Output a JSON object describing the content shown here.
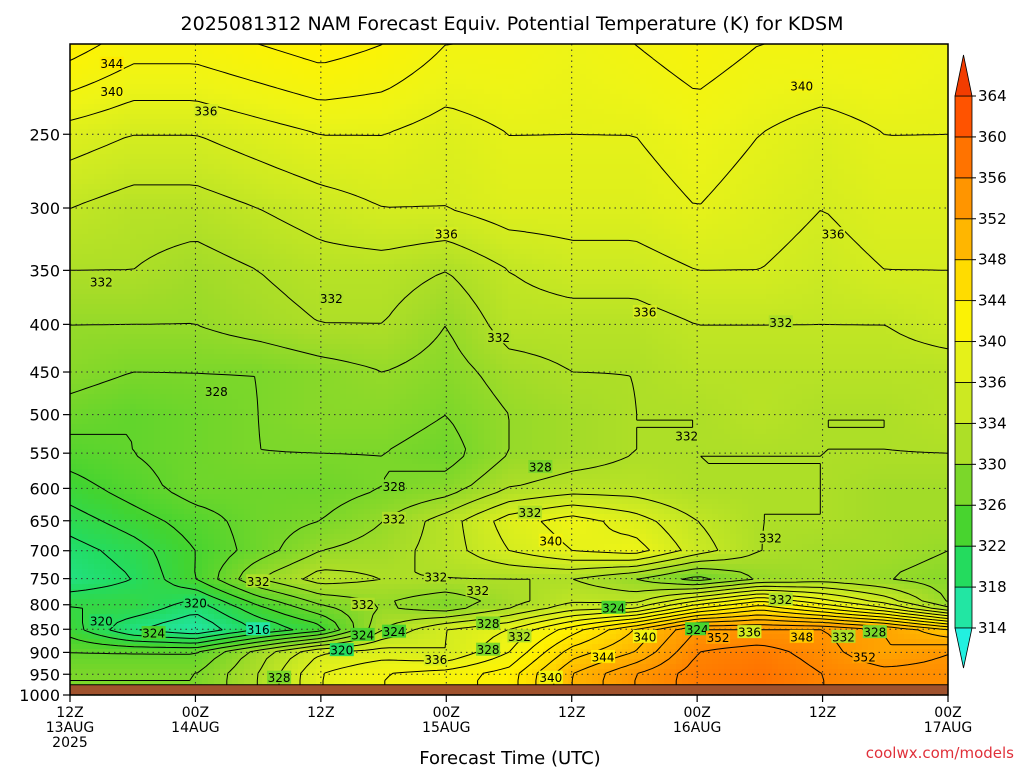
{
  "chart_data": {
    "type": "heatmap",
    "title": "2025081312 NAM Forecast Equiv. Potential Temperature (K) for KDSM",
    "xlabel": "Forecast Time (UTC)",
    "ylabel": "",
    "credit": "coolwx.com/models",
    "x_ticks": [
      {
        "hour": 0,
        "line1": "12Z",
        "line2": "13AUG",
        "line3": "2025"
      },
      {
        "hour": 12,
        "line1": "00Z",
        "line2": "14AUG",
        "line3": ""
      },
      {
        "hour": 24,
        "line1": "12Z",
        "line2": "",
        "line3": ""
      },
      {
        "hour": 36,
        "line1": "00Z",
        "line2": "15AUG",
        "line3": ""
      },
      {
        "hour": 48,
        "line1": "12Z",
        "line2": "",
        "line3": ""
      },
      {
        "hour": 60,
        "line1": "00Z",
        "line2": "16AUG",
        "line3": ""
      },
      {
        "hour": 72,
        "line1": "12Z",
        "line2": "",
        "line3": ""
      },
      {
        "hour": 84,
        "line1": "00Z",
        "line2": "17AUG",
        "line3": ""
      }
    ],
    "xlim": [
      0,
      84
    ],
    "y_ticks": [
      250,
      300,
      350,
      400,
      450,
      500,
      550,
      600,
      650,
      700,
      750,
      800,
      850,
      900,
      950,
      1000
    ],
    "ylim": [
      200,
      1000
    ],
    "y_scale": "log",
    "y_reversed": true,
    "surface_pressure_hpa": 975,
    "colorbar": {
      "ticks": [
        314,
        318,
        322,
        326,
        330,
        334,
        336,
        340,
        344,
        348,
        352,
        356,
        360,
        364
      ],
      "colors": [
        "#22f0e0",
        "#22e6a6",
        "#22dc62",
        "#42d430",
        "#74d62a",
        "#a6dc28",
        "#cdea22",
        "#eef416",
        "#fff200",
        "#ffd700",
        "#ffb000",
        "#ff9200",
        "#ff7000",
        "#ff5200",
        "#f23c00"
      ],
      "range": [
        312,
        366
      ]
    },
    "value_grid": {
      "levels_hpa": [
        200,
        250,
        300,
        350,
        400,
        450,
        500,
        550,
        600,
        650,
        700,
        750,
        800,
        850,
        900,
        950
      ],
      "hours": [
        0,
        6,
        12,
        18,
        24,
        30,
        36,
        42,
        48,
        54,
        60,
        66,
        72,
        78,
        84
      ],
      "theta_e_K": [
        [
          343,
          341,
          341,
          342,
          343,
          342,
          340,
          340,
          339,
          340,
          341,
          340,
          340,
          340,
          339
        ],
        [
          337,
          336,
          336,
          337,
          338,
          338,
          337,
          338,
          338,
          338,
          339,
          338,
          337,
          338,
          338
        ],
        [
          334,
          333,
          333,
          334,
          335,
          336,
          336,
          337,
          337,
          337,
          338,
          337,
          336,
          337,
          337
        ],
        [
          332,
          332,
          331,
          332,
          333,
          333,
          332,
          334,
          335,
          335,
          336,
          336,
          335,
          336,
          336
        ],
        [
          330,
          330,
          330,
          331,
          332,
          332,
          330,
          333,
          333,
          333,
          334,
          334,
          334,
          334,
          335
        ],
        [
          329,
          328,
          328,
          328,
          329,
          330,
          329,
          331,
          332,
          332,
          333,
          333,
          333,
          333,
          333
        ],
        [
          327,
          326,
          327,
          328,
          329,
          329,
          328,
          330,
          331,
          332,
          332,
          333,
          332,
          332,
          333
        ],
        [
          325,
          326,
          327,
          328,
          328,
          328,
          327,
          330,
          331,
          332,
          332,
          332,
          332,
          332,
          332
        ],
        [
          323,
          325,
          327,
          327,
          327,
          328,
          329,
          332,
          333,
          333,
          332,
          332,
          332,
          331,
          331
        ],
        [
          321,
          323,
          325,
          327,
          328,
          330,
          333,
          337,
          339,
          337,
          334,
          332,
          332,
          331,
          331
        ],
        [
          319,
          321,
          324,
          327,
          330,
          331,
          333,
          336,
          338,
          339,
          335,
          332,
          331,
          331,
          330
        ],
        [
          318,
          320,
          324,
          330,
          333,
          332,
          332,
          332,
          332,
          330,
          327,
          330,
          331,
          330,
          329
        ],
        [
          322,
          322,
          319,
          324,
          328,
          330,
          328,
          331,
          334,
          334,
          340,
          344,
          340,
          336,
          330
        ],
        [
          323,
          318,
          316,
          320,
          323,
          332,
          336,
          338,
          343,
          348,
          354,
          354,
          354,
          352,
          348
        ],
        [
          326,
          326,
          326,
          331,
          336,
          337,
          336,
          340,
          347,
          350,
          356,
          357,
          355,
          352,
          354
        ],
        [
          328,
          328,
          328,
          332,
          338,
          340,
          341,
          343,
          350,
          354,
          357,
          358,
          356,
          355,
          355
        ]
      ]
    },
    "contour_labels": [
      {
        "text": "344",
        "hour": 4,
        "p": 210
      },
      {
        "text": "340",
        "hour": 4,
        "p": 225
      },
      {
        "text": "336",
        "hour": 13,
        "p": 236
      },
      {
        "text": "340",
        "hour": 70,
        "p": 222
      },
      {
        "text": "336",
        "hour": 36,
        "p": 320
      },
      {
        "text": "336",
        "hour": 73,
        "p": 320
      },
      {
        "text": "332",
        "hour": 3,
        "p": 360
      },
      {
        "text": "332",
        "hour": 25,
        "p": 375
      },
      {
        "text": "336",
        "hour": 55,
        "p": 388
      },
      {
        "text": "332",
        "hour": 41,
        "p": 413
      },
      {
        "text": "332",
        "hour": 68,
        "p": 398
      },
      {
        "text": "328",
        "hour": 14,
        "p": 472
      },
      {
        "text": "332",
        "hour": 59,
        "p": 527
      },
      {
        "text": "328",
        "hour": 45,
        "p": 569
      },
      {
        "text": "328",
        "hour": 31,
        "p": 597
      },
      {
        "text": "332",
        "hour": 44,
        "p": 637
      },
      {
        "text": "332",
        "hour": 31,
        "p": 647
      },
      {
        "text": "340",
        "hour": 46,
        "p": 683
      },
      {
        "text": "332",
        "hour": 67,
        "p": 678
      },
      {
        "text": "332",
        "hour": 18,
        "p": 755
      },
      {
        "text": "332",
        "hour": 35,
        "p": 747
      },
      {
        "text": "332",
        "hour": 39,
        "p": 772
      },
      {
        "text": "320",
        "hour": 12,
        "p": 797
      },
      {
        "text": "332",
        "hour": 28,
        "p": 800
      },
      {
        "text": "332",
        "hour": 68,
        "p": 790
      },
      {
        "text": "324",
        "hour": 52,
        "p": 806
      },
      {
        "text": "320",
        "hour": 3,
        "p": 833
      },
      {
        "text": "328",
        "hour": 40,
        "p": 838
      },
      {
        "text": "324",
        "hour": 8,
        "p": 858
      },
      {
        "text": "316",
        "hour": 18,
        "p": 850
      },
      {
        "text": "324",
        "hour": 28,
        "p": 862
      },
      {
        "text": "324",
        "hour": 31,
        "p": 855
      },
      {
        "text": "332",
        "hour": 43,
        "p": 865
      },
      {
        "text": "340",
        "hour": 55,
        "p": 866
      },
      {
        "text": "324",
        "hour": 60,
        "p": 850
      },
      {
        "text": "352",
        "hour": 62,
        "p": 868
      },
      {
        "text": "336",
        "hour": 65,
        "p": 856
      },
      {
        "text": "348",
        "hour": 70,
        "p": 866
      },
      {
        "text": "332",
        "hour": 74,
        "p": 866
      },
      {
        "text": "328",
        "hour": 77,
        "p": 856
      },
      {
        "text": "320",
        "hour": 26,
        "p": 895
      },
      {
        "text": "328",
        "hour": 40,
        "p": 894
      },
      {
        "text": "336",
        "hour": 35,
        "p": 916
      },
      {
        "text": "344",
        "hour": 51,
        "p": 910
      },
      {
        "text": "352",
        "hour": 76,
        "p": 910
      },
      {
        "text": "328",
        "hour": 20,
        "p": 958
      },
      {
        "text": "340",
        "hour": 46,
        "p": 958
      }
    ]
  }
}
